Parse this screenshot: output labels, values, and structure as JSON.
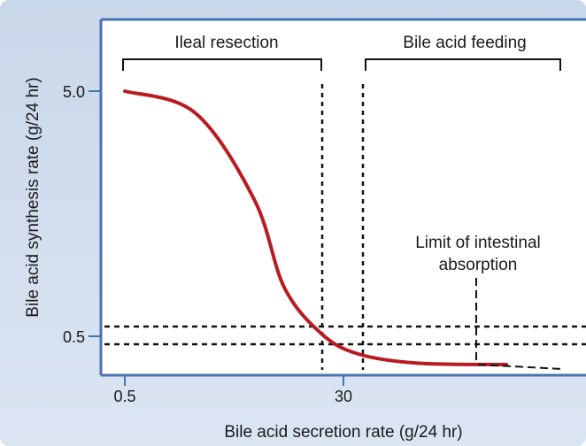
{
  "chart_data": {
    "type": "line",
    "title": "",
    "xlabel": "Bile acid secretion rate (g/24 hr)",
    "ylabel": "Bile acid synthesis rate (g/24 hr)",
    "x_ticks": [
      "0.5",
      "30"
    ],
    "y_ticks": [
      "5.0",
      "0.5"
    ],
    "grid": false,
    "legend": "none",
    "series": [
      {
        "color": "#b81c22",
        "points": [
          [
            0.5,
            5.0
          ],
          [
            10,
            4.6
          ],
          [
            18,
            3.0
          ],
          [
            22,
            1.4
          ],
          [
            27,
            0.55
          ],
          [
            32,
            0.25
          ],
          [
            40,
            0.12
          ],
          [
            52,
            0.1
          ]
        ]
      }
    ],
    "annotations": {
      "ileal_resection": "Ileal resection",
      "bile_acid_feeding": "Bile acid feeding",
      "limit_line1": "Limit of intestinal",
      "limit_line2": "absorption"
    },
    "colors": {
      "curve": "#b81c22",
      "axes": "#4a72b0",
      "background": "#d4e0ef"
    }
  }
}
